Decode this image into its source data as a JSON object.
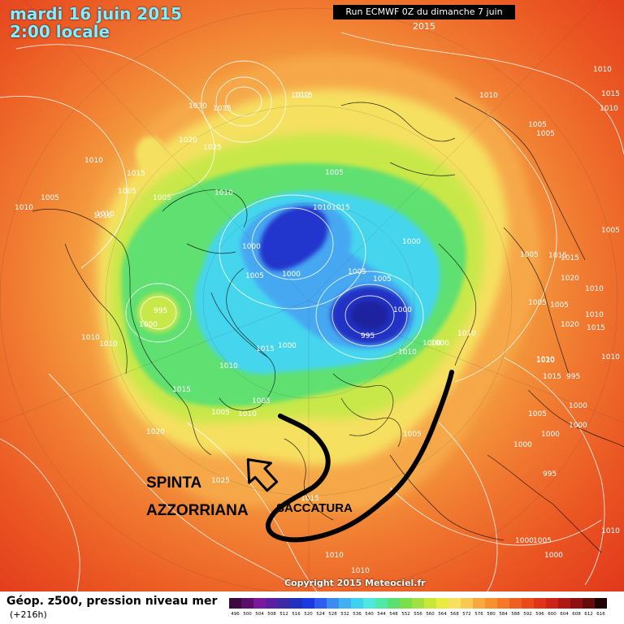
{
  "header": {
    "date_line1": "mardi 16 juin 2015",
    "date_line2": "2:00 locale",
    "run_label": "Run ECMWF 0Z du dimanche 7 juin 2015"
  },
  "annotations": {
    "spinta_line1": "SPINTA",
    "spinta_line2": "AZZORRIANA",
    "saccatura": "SACCATURA"
  },
  "copyright": "Copyright 2015 Meteociel.fr",
  "legend": {
    "title": "Géop. z500, pression niveau mer",
    "subtitle": "(+216h)",
    "values": [
      "496",
      "500",
      "504",
      "508",
      "512",
      "516",
      "520",
      "524",
      "528",
      "532",
      "536",
      "540",
      "544",
      "548",
      "552",
      "556",
      "560",
      "564",
      "568",
      "572",
      "576",
      "580",
      "584",
      "588",
      "592",
      "596",
      "600",
      "604",
      "608",
      "612",
      "616"
    ],
    "colors": [
      "#3d0a3d",
      "#5a0f6b",
      "#7a1a9a",
      "#5a1ea0",
      "#3a2aa8",
      "#2030c0",
      "#1a3ae0",
      "#2c5cf0",
      "#3c8cf0",
      "#40b0f0",
      "#40d0f0",
      "#4ee8e0",
      "#50e8a8",
      "#5ae070",
      "#78e048",
      "#a0e040",
      "#c8e838",
      "#e8ec40",
      "#f8e060",
      "#f8c850",
      "#f8a840",
      "#f89030",
      "#f47828",
      "#ee6020",
      "#e84a18",
      "#e03418",
      "#cc2418",
      "#b01818",
      "#8c1010",
      "#640c0c",
      "#200404"
    ]
  },
  "pressure_labels": [
    "1010",
    "1010",
    "1010",
    "1035",
    "1030",
    "1020",
    "1025",
    "1015",
    "1010",
    "1010",
    "1005",
    "1015",
    "1010",
    "1015",
    "1005",
    "1010",
    "1005",
    "1005",
    "1010",
    "1005",
    "1005",
    "1010",
    "1015",
    "1010",
    "1000",
    "1005",
    "1000",
    "1000",
    "1000",
    "1005",
    "1005",
    "1000",
    "1000",
    "995",
    "1000",
    "995",
    "1010",
    "1010",
    "1005",
    "1010",
    "1015",
    "1015",
    "1010",
    "1000",
    "1010",
    "1005",
    "1005",
    "1010",
    "1020",
    "1015",
    "1015",
    "1020",
    "1010",
    "1005",
    "1005",
    "1005",
    "1020",
    "1010",
    "1015",
    "1000",
    "1005",
    "1010",
    "1020",
    "1010",
    "1015",
    "995",
    "1000",
    "1000",
    "1000",
    "1005",
    "1005",
    "1010",
    "1025",
    "1015",
    "995",
    "1010",
    "1000",
    "1000",
    "1010"
  ]
}
